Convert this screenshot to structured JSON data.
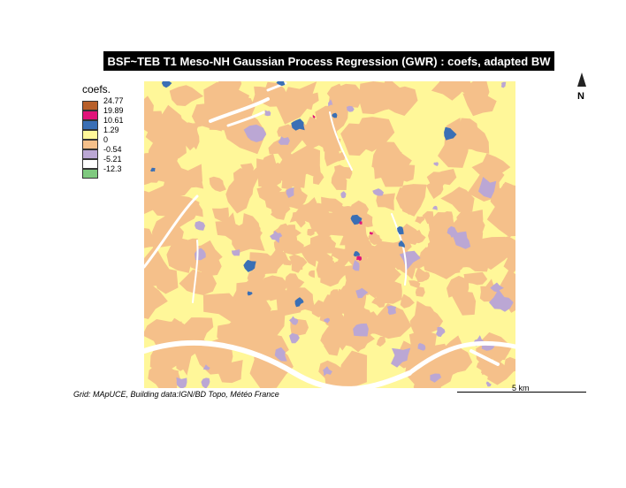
{
  "title": "BSF~TEB T1 Meso-NH Gaussian Process Regression (GWR) : coefs, adapted BW",
  "legend": {
    "title": "coefs.",
    "items": [
      {
        "label": "24.77",
        "color": "#b8602a"
      },
      {
        "label": "19.89",
        "color": "#e0147a"
      },
      {
        "label": "10.61",
        "color": "#3a6fb5"
      },
      {
        "label": "1.29",
        "color": "#fff799"
      },
      {
        "label": "0",
        "color": "#f5c08a"
      },
      {
        "label": "-0.54",
        "color": "#bba7d4"
      },
      {
        "label": "-5.21",
        "color": "#ffffff"
      },
      {
        "label": "-12.3",
        "color": "#7fc97f"
      }
    ]
  },
  "north_arrow": {
    "label": "N"
  },
  "scale_bar": {
    "label": "5 km"
  },
  "credit": "Grid: MApUCE, Building data:IGN/BD Topo, Météo France",
  "map_colors": {
    "background": "#fff799",
    "orange": "#f5c08a",
    "lavender": "#bba7d4",
    "blue": "#3a6fb5",
    "magenta": "#e0147a",
    "brown": "#b8602a",
    "white": "#ffffff"
  }
}
